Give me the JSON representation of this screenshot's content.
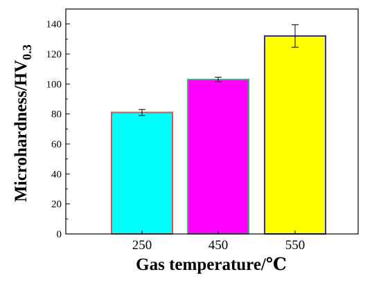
{
  "chart_data": {
    "type": "bar",
    "categories": [
      "250",
      "450",
      "550"
    ],
    "values": [
      81,
      103,
      132
    ],
    "error": [
      2,
      1.5,
      7.5
    ],
    "bar_colors": [
      "#00FFFF",
      "#FF00FF",
      "#FFFF00"
    ],
    "edge_colors": [
      "#D9534F",
      "#3CB371",
      "#2B2BD9"
    ],
    "xlabel": "Gas temperature/℃",
    "ylabel_main": "Microhardness/HV",
    "ylabel_sub": "0.3",
    "ylim": [
      0,
      150
    ],
    "yticks": [
      0,
      20,
      40,
      60,
      80,
      100,
      120,
      140
    ],
    "grid": false
  }
}
